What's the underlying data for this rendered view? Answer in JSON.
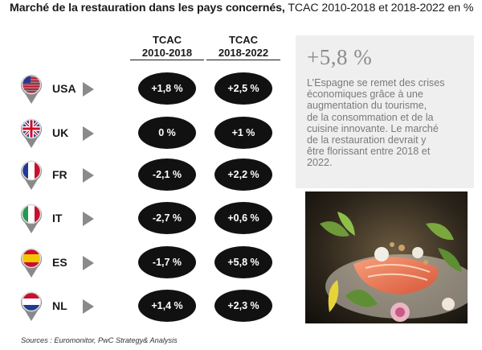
{
  "title": {
    "bold": "Marché de la restauration dans les pays concernés,",
    "rest": " TCAC 2010-2018 et 2018-2022 en %"
  },
  "columns": [
    {
      "line1": "TCAC",
      "line2": "2010-2018"
    },
    {
      "line1": "TCAC",
      "line2": "2018-2022"
    }
  ],
  "rows": [
    {
      "code": "USA",
      "flag": "us-flag-icon",
      "v1": "+1,8 %",
      "v2": "+2,5 %"
    },
    {
      "code": "UK",
      "flag": "uk-flag-icon",
      "v1": "0 %",
      "v2": "+1 %"
    },
    {
      "code": "FR",
      "flag": "fr-flag-icon",
      "v1": "-2,1 %",
      "v2": "+2,2 %"
    },
    {
      "code": "IT",
      "flag": "it-flag-icon",
      "v1": "-2,7 %",
      "v2": "+0,6 %"
    },
    {
      "code": "ES",
      "flag": "es-flag-icon",
      "v1": "-1,7 %",
      "v2": "+5,8 %"
    },
    {
      "code": "NL",
      "flag": "nl-flag-icon",
      "v1": "+1,4 %",
      "v2": "+2,3 %"
    }
  ],
  "highlight": {
    "value": "+5,8 %",
    "lines": [
      "L’Espagne se remet des crises",
      "économiques grâce à une",
      "augmentation du tourisme,",
      "de la consommation et de la",
      "cuisine innovante. Le marché",
      "de la restauration devrait y",
      "être florissant entre 2018 et",
      "2022."
    ]
  },
  "source": "Sources : Euromonitor, PwC Strategy& Analysis",
  "colors": {
    "pill": "#111111",
    "panel": "#efefef",
    "highlight_text": "#8c8c8c",
    "arrow": "#8a8a8a"
  },
  "chart_data": {
    "type": "table",
    "title": "Marché de la restauration dans les pays concernés, TCAC 2010-2018 et 2018-2022 en %",
    "categories": [
      "USA",
      "UK",
      "FR",
      "IT",
      "ES",
      "NL"
    ],
    "series": [
      {
        "name": "TCAC 2010-2018",
        "values": [
          1.8,
          0,
          -2.1,
          -2.7,
          -1.7,
          1.4
        ]
      },
      {
        "name": "TCAC 2018-2022",
        "values": [
          2.5,
          1,
          2.2,
          0.6,
          5.8,
          2.3
        ]
      }
    ]
  }
}
